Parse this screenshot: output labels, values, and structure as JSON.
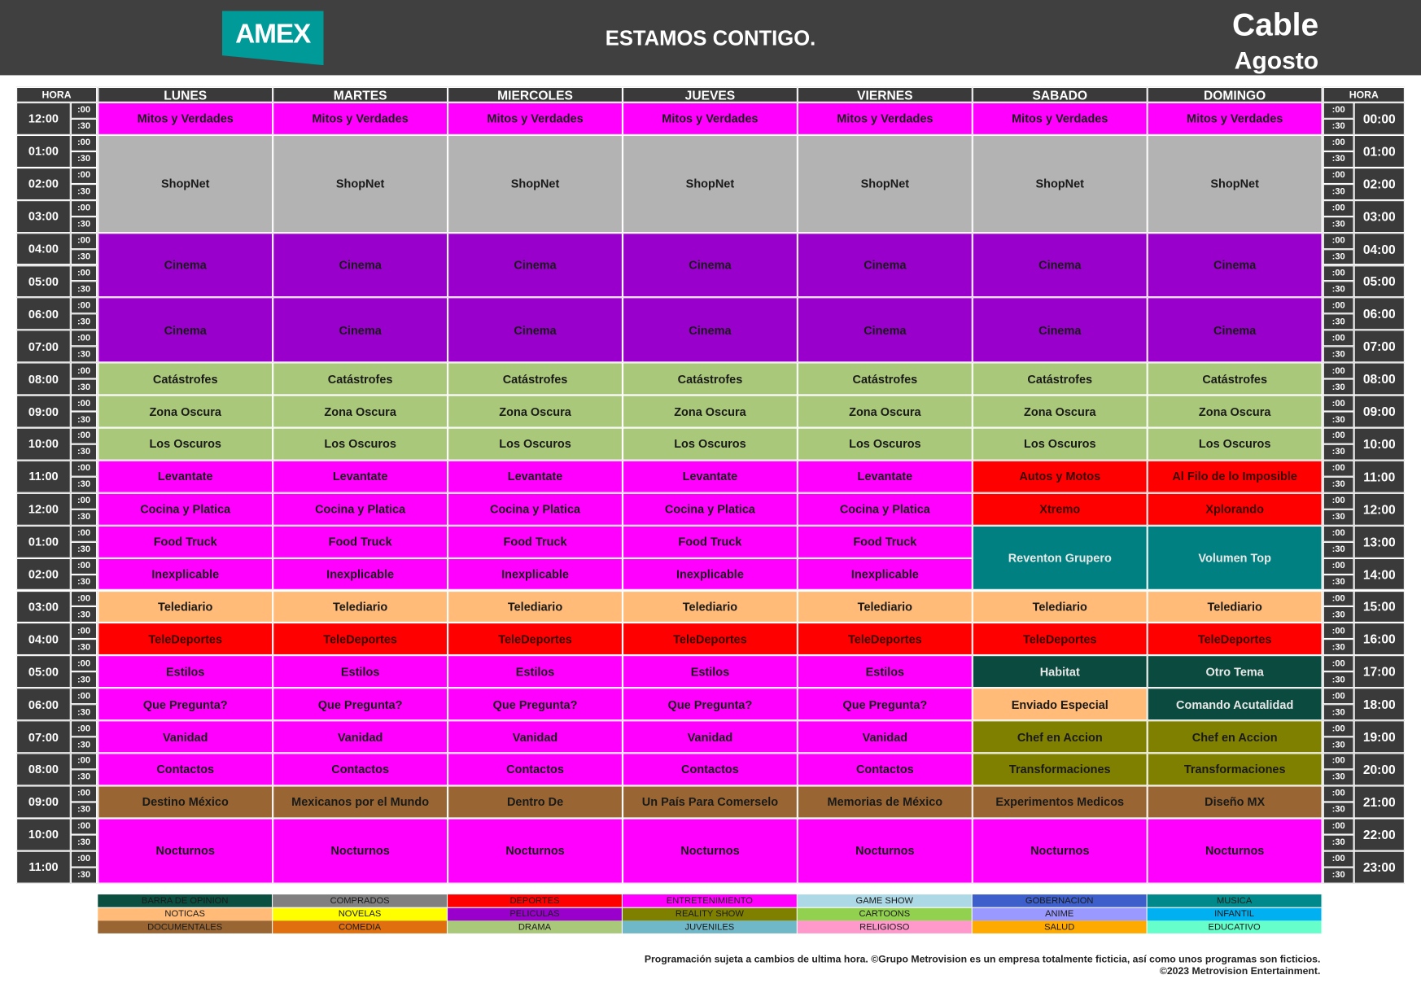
{
  "header": {
    "logo": "AMEX",
    "tagline": "ESTAMOS CONTIGO.",
    "channel": "Cable",
    "month": "Agosto"
  },
  "schedule": {
    "hour_header": "HORA",
    "days": [
      "LUNES",
      "MARTES",
      "MIERCOLES",
      "JUEVES",
      "VIERNES",
      "SABADO",
      "DOMINGO"
    ],
    "hours_12h": [
      "12:00",
      "01:00",
      "02:00",
      "03:00",
      "04:00",
      "05:00",
      "06:00",
      "07:00",
      "08:00",
      "09:00",
      "10:00",
      "11:00",
      "12:00",
      "01:00",
      "02:00",
      "03:00",
      "04:00",
      "05:00",
      "06:00",
      "07:00",
      "08:00",
      "09:00",
      "10:00",
      "11:00"
    ],
    "hours_24h": [
      "00:00",
      "01:00",
      "02:00",
      "03:00",
      "04:00",
      "05:00",
      "06:00",
      "07:00",
      "08:00",
      "09:00",
      "10:00",
      "11:00",
      "12:00",
      "13:00",
      "14:00",
      "15:00",
      "16:00",
      "17:00",
      "18:00",
      "19:00",
      "20:00",
      "21:00",
      "22:00",
      "23:00"
    ],
    "minutes": [
      ":00",
      ":30"
    ],
    "programs": [
      [
        "Mitos y Verdades",
        "ShopNet",
        "Cinema",
        "Cinema",
        "Catástrofes",
        "Zona Oscura",
        "Los Oscuros",
        "Levantate",
        "Cocina y Platica",
        "Food Truck",
        "Inexplicable",
        "Telediario",
        "TeleDeportes",
        "Estilos",
        "Que Pregunta?",
        "Vanidad",
        "Contactos",
        "Destino México",
        "Nocturnos"
      ],
      [
        "Mitos y Verdades",
        "ShopNet",
        "Cinema",
        "Cinema",
        "Catástrofes",
        "Zona Oscura",
        "Los Oscuros",
        "Levantate",
        "Cocina y Platica",
        "Food Truck",
        "Inexplicable",
        "Telediario",
        "TeleDeportes",
        "Estilos",
        "Que Pregunta?",
        "Vanidad",
        "Contactos",
        "Mexicanos por el Mundo",
        "Nocturnos"
      ],
      [
        "Mitos y Verdades",
        "ShopNet",
        "Cinema",
        "Cinema",
        "Catástrofes",
        "Zona Oscura",
        "Los Oscuros",
        "Levantate",
        "Cocina y Platica",
        "Food Truck",
        "Inexplicable",
        "Telediario",
        "TeleDeportes",
        "Estilos",
        "Que Pregunta?",
        "Vanidad",
        "Contactos",
        "Dentro De",
        "Nocturnos"
      ],
      [
        "Mitos y Verdades",
        "ShopNet",
        "Cinema",
        "Cinema",
        "Catástrofes",
        "Zona Oscura",
        "Los Oscuros",
        "Levantate",
        "Cocina y Platica",
        "Food Truck",
        "Inexplicable",
        "Telediario",
        "TeleDeportes",
        "Estilos",
        "Que Pregunta?",
        "Vanidad",
        "Contactos",
        "Un País Para Comerselo",
        "Nocturnos"
      ],
      [
        "Mitos y Verdades",
        "ShopNet",
        "Cinema",
        "Cinema",
        "Catástrofes",
        "Zona Oscura",
        "Los Oscuros",
        "Levantate",
        "Cocina y Platica",
        "Food Truck",
        "Inexplicable",
        "Telediario",
        "TeleDeportes",
        "Estilos",
        "Que Pregunta?",
        "Vanidad",
        "Contactos",
        "Memorias de México",
        "Nocturnos"
      ],
      [
        "Mitos y Verdades",
        "ShopNet",
        "Cinema",
        "Cinema",
        "Catástrofes",
        "Zona Oscura",
        "Los Oscuros",
        "Autos y Motos",
        "Xtremo",
        "Reventon Grupero",
        "Telediario",
        "TeleDeportes",
        "Habitat",
        "Enviado Especial",
        "Chef en Accion",
        "Transformaciones",
        "Experimentos Medicos",
        "Nocturnos"
      ],
      [
        "Mitos y Verdades",
        "ShopNet",
        "Cinema",
        "Cinema",
        "Catástrofes",
        "Zona Oscura",
        "Los Oscuros",
        "Al Filo de lo Imposible",
        "Xplorando",
        "Volumen Top",
        "Telediario",
        "TeleDeportes",
        "Otro Tema",
        "Comando Acutalidad",
        "Chef en Accion",
        "Transformaciones",
        "Diseño MX",
        "Nocturnos"
      ]
    ]
  },
  "legend": [
    "BARRA DE OPINION",
    "COMPRADOS",
    "DEPORTES",
    "ENTRETENIMIENTO",
    "GAME SHOW",
    "GOBERNACION",
    "MUSICA",
    "NOTICAS",
    "NOVELAS",
    "PELICULAS",
    "REALITY SHOW",
    "CARTOONS",
    "ANIME",
    "INFANTIL",
    "DOCUMENTALES",
    "COMEDIA",
    "DRAMA",
    "JUVENILES",
    "RELIGIOSO",
    "SALUD",
    "EDUCATIVO"
  ],
  "footer": [
    "Programación sujeta a cambios de ultima hora. ©Grupo Metrovision es un empresa totalmente ficticia, así como unos programas son ficticios.",
    "©2023 Metrovision Entertainment."
  ]
}
